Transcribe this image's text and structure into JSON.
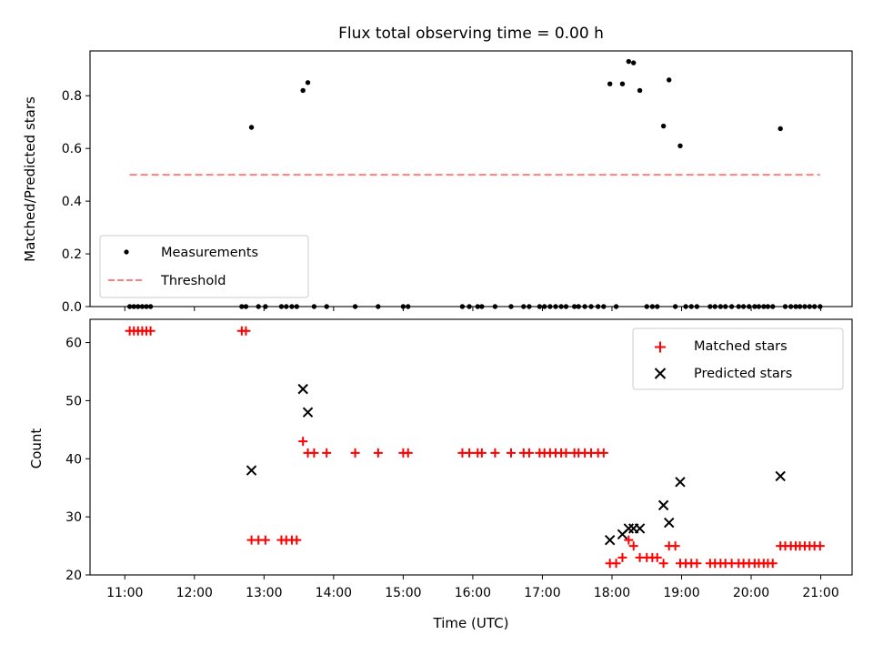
{
  "chart_data": {
    "title": "Flux total observing time = 0.00 h",
    "xlabel": "Time (UTC)",
    "x_ticks": [
      "11:00",
      "12:00",
      "13:00",
      "14:00",
      "15:00",
      "16:00",
      "17:00",
      "18:00",
      "19:00",
      "20:00",
      "21:00"
    ],
    "xlim": [
      10.5,
      21.45
    ],
    "panels": [
      {
        "type": "scatter",
        "ylabel": "Matched/Predicted stars",
        "ylim": [
          0,
          0.97
        ],
        "y_ticks": [
          0.0,
          0.2,
          0.4,
          0.6,
          0.8
        ],
        "y_tick_labels": [
          "0.0",
          "0.2",
          "0.4",
          "0.6",
          "0.8"
        ],
        "legend_position": "lower-left",
        "series": [
          {
            "name": "Measurements",
            "marker": "dot",
            "color": "#000000",
            "x": [
              11.07,
              11.13,
              11.19,
              11.25,
              11.31,
              11.37,
              12.68,
              12.74,
              12.82,
              12.92,
              13.02,
              13.25,
              13.32,
              13.4,
              13.47,
              13.56,
              13.63,
              13.72,
              13.9,
              14.31,
              14.64,
              15.0,
              15.07,
              15.85,
              15.95,
              16.07,
              16.13,
              16.32,
              16.55,
              16.73,
              16.81,
              16.96,
              17.03,
              17.11,
              17.19,
              17.27,
              17.34,
              17.46,
              17.52,
              17.61,
              17.7,
              17.8,
              17.88,
              17.97,
              18.06,
              18.15,
              18.24,
              18.31,
              18.4,
              18.5,
              18.58,
              18.65,
              18.74,
              18.82,
              18.91,
              18.98,
              19.06,
              19.14,
              19.22,
              19.41,
              19.48,
              19.56,
              19.63,
              19.72,
              19.82,
              19.89,
              19.97,
              20.05,
              20.11,
              20.18,
              20.24,
              20.31,
              20.42,
              20.49,
              20.57,
              20.64,
              20.7,
              20.77,
              20.84,
              20.91,
              20.99
            ],
            "y": [
              0,
              0,
              0,
              0,
              0,
              0,
              0,
              0,
              0.68,
              0,
              0,
              0,
              0,
              0,
              0,
              0.82,
              0.85,
              0,
              0,
              0,
              0,
              0,
              0,
              0,
              0,
              0,
              0,
              0,
              0,
              0,
              0,
              0,
              0,
              0,
              0,
              0,
              0,
              0,
              0,
              0,
              0,
              0,
              0,
              0.845,
              0,
              0.845,
              0.93,
              0.925,
              0.82,
              0,
              0,
              0,
              0.685,
              0.86,
              0,
              0.61,
              0,
              0,
              0,
              0,
              0,
              0,
              0,
              0,
              0,
              0,
              0,
              0,
              0,
              0,
              0,
              0,
              0.675,
              0,
              0,
              0,
              0,
              0,
              0,
              0,
              0
            ]
          },
          {
            "name": "Threshold",
            "marker": "dashed-line",
            "color": "#ff7f7f",
            "x": [
              11.07,
              20.99
            ],
            "y": [
              0.5,
              0.5
            ]
          }
        ]
      },
      {
        "type": "scatter",
        "ylabel": "Count",
        "ylim": [
          20,
          64
        ],
        "y_ticks": [
          20,
          30,
          40,
          50,
          60
        ],
        "y_tick_labels": [
          "20",
          "30",
          "40",
          "50",
          "60"
        ],
        "legend_position": "upper-right",
        "series": [
          {
            "name": "Matched stars",
            "marker": "plus",
            "color": "#ff0000",
            "x": [
              11.07,
              11.13,
              11.19,
              11.25,
              11.31,
              11.37,
              12.68,
              12.74,
              12.82,
              12.92,
              13.02,
              13.25,
              13.32,
              13.4,
              13.47,
              13.56,
              13.63,
              13.72,
              13.9,
              14.31,
              14.64,
              15.0,
              15.07,
              15.85,
              15.95,
              16.07,
              16.13,
              16.32,
              16.55,
              16.73,
              16.81,
              16.96,
              17.03,
              17.11,
              17.19,
              17.27,
              17.34,
              17.46,
              17.52,
              17.61,
              17.7,
              17.8,
              17.88,
              17.97,
              18.06,
              18.15,
              18.24,
              18.31,
              18.4,
              18.5,
              18.58,
              18.65,
              18.74,
              18.82,
              18.91,
              18.98,
              19.06,
              19.14,
              19.22,
              19.41,
              19.48,
              19.56,
              19.63,
              19.72,
              19.82,
              19.89,
              19.97,
              20.05,
              20.11,
              20.18,
              20.24,
              20.31,
              20.42,
              20.49,
              20.57,
              20.64,
              20.7,
              20.77,
              20.84,
              20.91,
              20.99
            ],
            "y": [
              62,
              62,
              62,
              62,
              62,
              62,
              62,
              62,
              26,
              26,
              26,
              26,
              26,
              26,
              26,
              43,
              41,
              41,
              41,
              41,
              41,
              41,
              41,
              41,
              41,
              41,
              41,
              41,
              41,
              41,
              41,
              41,
              41,
              41,
              41,
              41,
              41,
              41,
              41,
              41,
              41,
              41,
              41,
              22,
              22,
              23,
              26,
              25,
              23,
              23,
              23,
              23,
              22,
              25,
              25,
              22,
              22,
              22,
              22,
              22,
              22,
              22,
              22,
              22,
              22,
              22,
              22,
              22,
              22,
              22,
              22,
              22,
              25,
              25,
              25,
              25,
              25,
              25,
              25,
              25,
              25
            ]
          },
          {
            "name": "Predicted stars",
            "marker": "x",
            "color": "#000000",
            "x": [
              12.82,
              13.56,
              13.63,
              17.97,
              18.15,
              18.24,
              18.31,
              18.4,
              18.74,
              18.82,
              18.98,
              20.42
            ],
            "y": [
              38,
              52,
              48,
              26,
              27,
              28,
              28,
              28,
              32,
              29,
              36,
              37
            ]
          }
        ]
      }
    ]
  }
}
